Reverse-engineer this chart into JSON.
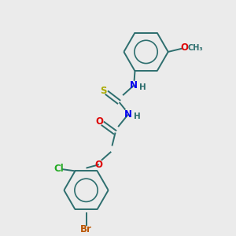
{
  "background_color": "#ebebeb",
  "bond_color": "#2d6e6e",
  "atom_colors": {
    "N": "#0000ee",
    "O": "#dd0000",
    "S": "#aaaa00",
    "Br": "#bb5500",
    "Cl": "#22aa22",
    "C": "#2d6e6e",
    "H": "#2d6e6e"
  },
  "font_size": 8.5,
  "lw": 1.4
}
